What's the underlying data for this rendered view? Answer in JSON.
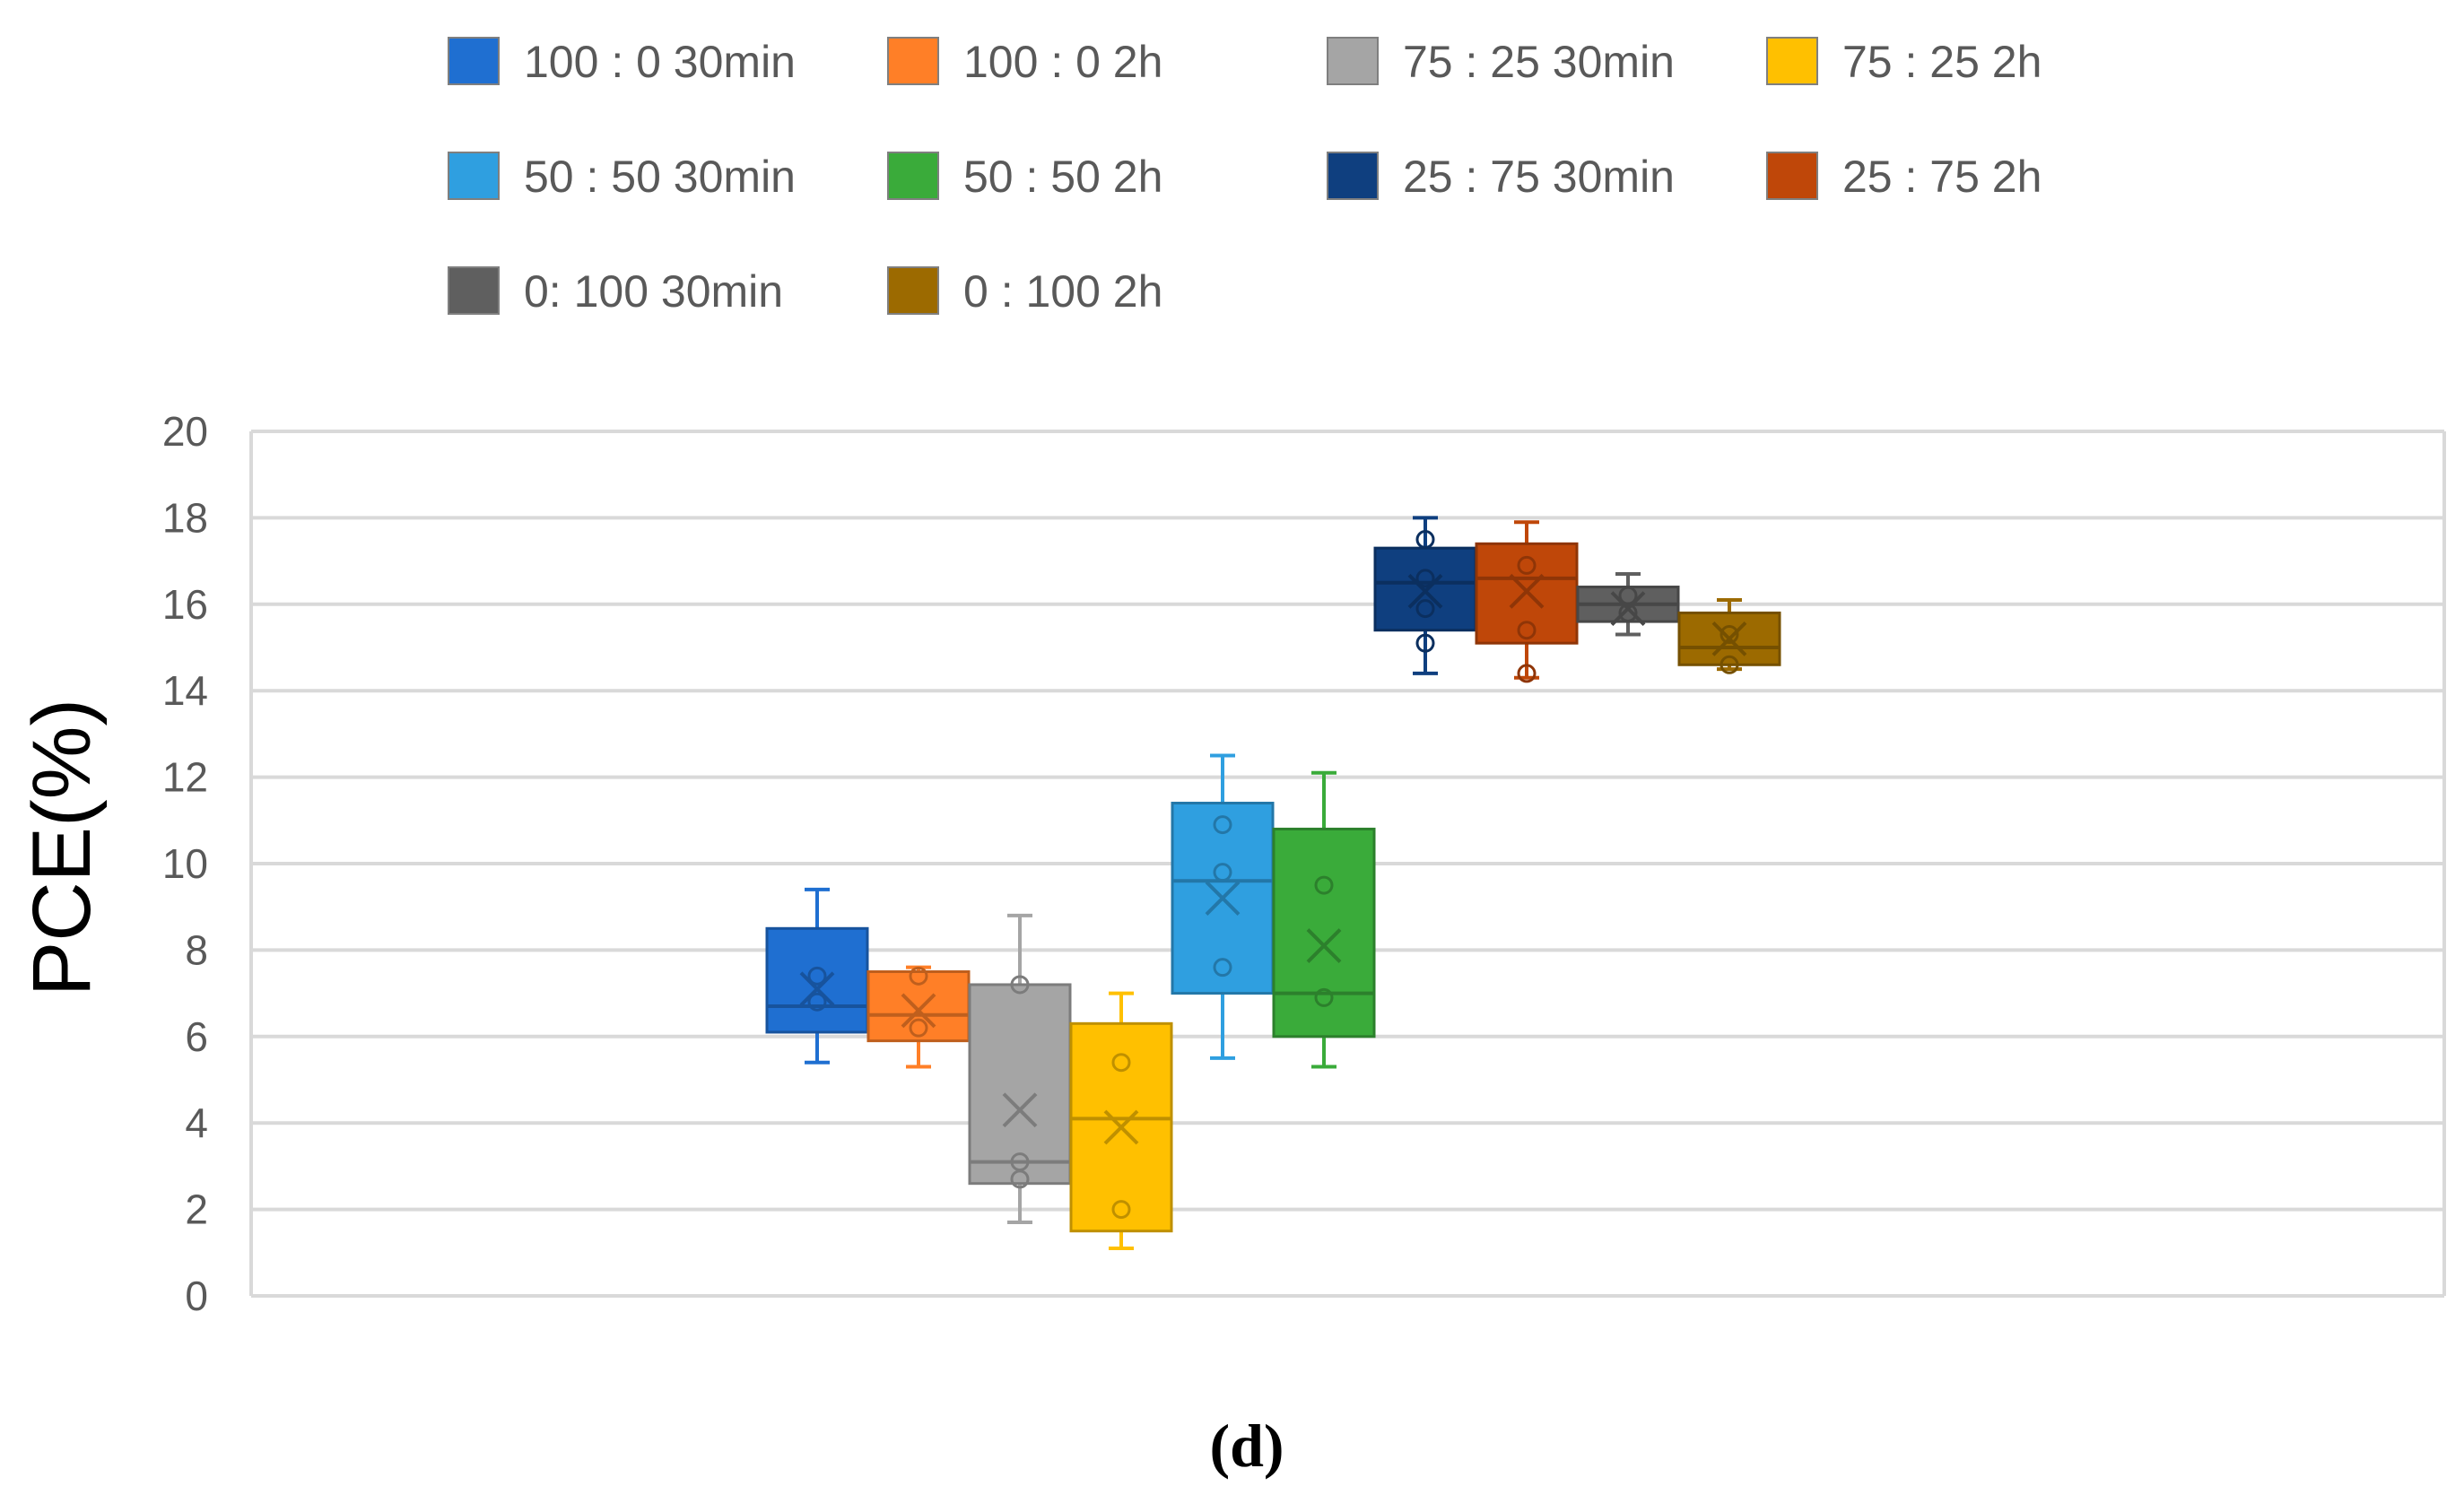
{
  "chart_data": {
    "type": "box",
    "ylabel": "PCE(%)",
    "xlabel": "",
    "ylim": [
      0,
      20
    ],
    "yticks": [
      0,
      2,
      4,
      6,
      8,
      10,
      12,
      14,
      16,
      18,
      20
    ],
    "grid": true,
    "legend_position": "top",
    "caption": "(d)",
    "series": [
      {
        "name": "100 : 0 30min",
        "color": "#1f6fd1",
        "min": 5.4,
        "q1": 6.1,
        "median": 6.7,
        "q3": 8.5,
        "max": 9.4,
        "mean": 7.1,
        "points": [
          6.8,
          7.4
        ]
      },
      {
        "name": "100 : 0 2h",
        "color": "#ff7f27",
        "min": 5.3,
        "q1": 5.9,
        "median": 6.5,
        "q3": 7.5,
        "max": 7.6,
        "mean": 6.6,
        "points": [
          6.2,
          7.4
        ]
      },
      {
        "name": "75 : 25 30min",
        "color": "#a5a5a5",
        "min": 1.7,
        "q1": 2.6,
        "median": 3.1,
        "q3": 7.2,
        "max": 8.8,
        "mean": 4.3,
        "points": [
          2.7,
          3.1,
          7.2
        ]
      },
      {
        "name": "75 : 25 2h",
        "color": "#ffc000",
        "min": 1.1,
        "q1": 1.5,
        "median": 4.1,
        "q3": 6.3,
        "max": 7.0,
        "mean": 3.9,
        "points": [
          2.0,
          5.4
        ]
      },
      {
        "name": "50 : 50 30min",
        "color": "#2f9fe0",
        "min": 5.5,
        "q1": 7.0,
        "median": 9.6,
        "q3": 11.4,
        "max": 12.5,
        "mean": 9.2,
        "points": [
          7.6,
          9.8,
          10.9
        ]
      },
      {
        "name": "50 : 50 2h",
        "color": "#3aab3a",
        "min": 5.3,
        "q1": 6.0,
        "median": 7.0,
        "q3": 10.8,
        "max": 12.1,
        "mean": 8.1,
        "points": [
          6.9,
          9.5
        ]
      },
      {
        "name": "25 : 75 30min",
        "color": "#0f3f7f",
        "min": 14.4,
        "q1": 15.4,
        "median": 16.5,
        "q3": 17.3,
        "max": 18.0,
        "mean": 16.3,
        "points": [
          15.1,
          15.9,
          16.6,
          17.5
        ]
      },
      {
        "name": "25 : 75 2h",
        "color": "#bf4709",
        "min": 14.3,
        "q1": 15.1,
        "median": 16.6,
        "q3": 17.4,
        "max": 17.9,
        "mean": 16.3,
        "points": [
          14.4,
          15.4,
          16.9
        ]
      },
      {
        "name": "0: 100 30min",
        "color": "#5f5f5f",
        "min": 15.3,
        "q1": 15.6,
        "median": 16.0,
        "q3": 16.4,
        "max": 16.7,
        "mean": 15.9,
        "points": [
          15.8,
          16.2
        ]
      },
      {
        "name": "0 : 100 2h",
        "color": "#9c6a00",
        "min": 14.5,
        "q1": 14.6,
        "median": 15.0,
        "q3": 15.8,
        "max": 16.1,
        "mean": 15.2,
        "points": [
          14.6,
          15.3
        ]
      }
    ]
  }
}
